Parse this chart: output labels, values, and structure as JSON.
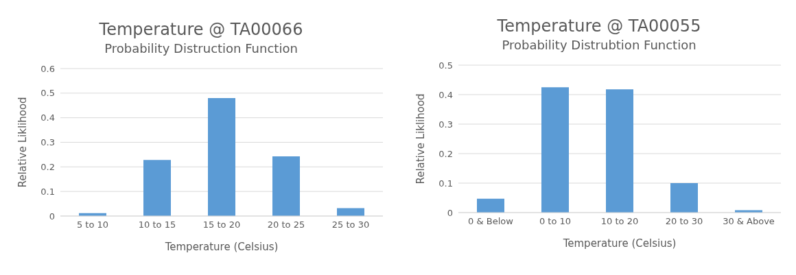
{
  "chart_data": [
    {
      "type": "bar",
      "title": "Temperature @ TA00066",
      "subtitle": "Probability Distruction Function",
      "xlabel": "Temperature (Celsius)",
      "ylabel": "Relative Liklihood",
      "categories": [
        "5 to 10",
        "10 to 15",
        "15 to 20",
        "20 to 25",
        "25 to 30"
      ],
      "values": [
        0.012,
        0.228,
        0.48,
        0.243,
        0.032
      ],
      "color": "#5b9bd5",
      "ylim": [
        0,
        0.6
      ],
      "yticks": [
        0,
        0.1,
        0.2,
        0.3,
        0.4,
        0.5,
        0.6
      ],
      "grid": "y",
      "legend": false
    },
    {
      "type": "bar",
      "title": "Temperature  @ TA00055",
      "subtitle": "Probability Distrubtion Function",
      "xlabel": "Temperature (Celsius)",
      "ylabel": "Relative Liklihood",
      "categories": [
        "0 & Below",
        "0 to 10",
        "10 to 20",
        "20 to 30",
        "30 & Above"
      ],
      "values": [
        0.047,
        0.425,
        0.418,
        0.1,
        0.008
      ],
      "color": "#5b9bd5",
      "ylim": [
        0,
        0.5
      ],
      "yticks": [
        0,
        0.1,
        0.2,
        0.3,
        0.4,
        0.5
      ],
      "grid": "y",
      "legend": false
    }
  ]
}
